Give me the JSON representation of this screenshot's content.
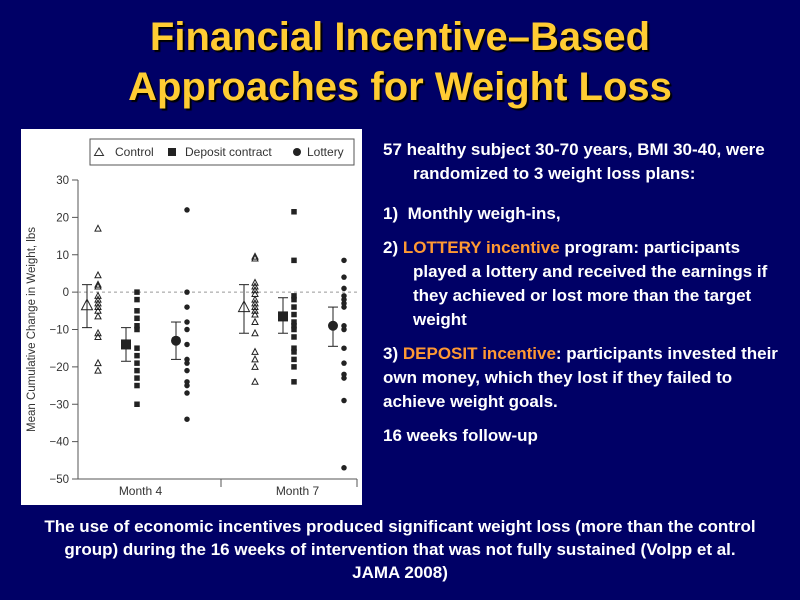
{
  "slide": {
    "title_line1": "Financial Incentive–Based",
    "title_line2": "Approaches for Weight Loss",
    "intro": "57 healthy subject 30-70 years, BMI 30-40, were randomized to 3 weight loss plans:",
    "item1_num": "1)",
    "item1_text": "Monthly weigh-ins,",
    "item2_num": "2)",
    "item2_highlight": "LOTTERY incentive",
    "item2_text": " program: participants played a lottery and received the earnings if they achieved or lost more than the target weight",
    "item3_num": "3)",
    "item3_highlight": "DEPOSIT incentive",
    "item3_text": ": participants invested their own money, which they lost if they failed to achieve weight goals.",
    "followup": "16 weeks follow-up",
    "conclusion": "The use of economic incentives produced significant weight loss (more than the control group) during the 16 weeks of intervention that was not fully sustained (Volpp et al. JAMA 2008)"
  },
  "colors": {
    "background": "#000066",
    "title": "#FFCC33",
    "highlight": "#FF9933",
    "text": "#FFFFFF"
  },
  "chart_data": {
    "type": "scatter",
    "ylabel": "Mean Cumulative Change in Weight, lbs",
    "ylim": [
      -50,
      30
    ],
    "yticks": [
      30,
      20,
      10,
      0,
      -10,
      -20,
      -30,
      -40,
      -50
    ],
    "ytick_labels": [
      "30",
      "20",
      "10",
      "0",
      "−10",
      "−20",
      "−30",
      "−40",
      "−50"
    ],
    "categories": [
      "Month 4",
      "Month 7"
    ],
    "legend": {
      "position": "top",
      "entries": [
        "Control",
        "Deposit contract",
        "Lottery"
      ]
    },
    "series": [
      {
        "name": "Control",
        "marker": "triangle-open",
        "points": [
          [
            17,
            4.5,
            2,
            1.5,
            -1,
            -2,
            -3,
            -4,
            -5,
            -6.5,
            -11,
            -12,
            -19,
            -21
          ],
          [
            9.5,
            9,
            2.5,
            1.5,
            0.5,
            -0.5,
            -2,
            -3,
            -4,
            -5,
            -6,
            -8,
            -11,
            -16,
            -18,
            -20,
            -24
          ]
        ],
        "mean": [
          -3.5,
          -4
        ],
        "err": [
          [
            -9.5,
            2
          ],
          [
            -11,
            2
          ]
        ]
      },
      {
        "name": "Deposit contract",
        "marker": "square-filled",
        "points": [
          [
            0,
            -2,
            -5,
            -7,
            -9,
            -10,
            -15,
            -17,
            -19,
            -21,
            -23,
            -25,
            -30
          ],
          [
            21.5,
            8.5,
            -1,
            -2,
            -4,
            -6,
            -8,
            -9,
            -10,
            -12,
            -15,
            -16,
            -18,
            -20,
            -24
          ]
        ],
        "mean": [
          -14,
          -6.5
        ],
        "err": [
          [
            -18.5,
            -9.5
          ],
          [
            -11,
            -1.5
          ]
        ]
      },
      {
        "name": "Lottery",
        "marker": "circle-filled",
        "points": [
          [
            22,
            0,
            -4,
            -8,
            -10,
            -14,
            -18,
            -19,
            -21,
            -24,
            -25,
            -27,
            -34
          ],
          [
            8.5,
            4,
            1,
            -1,
            -2,
            -3,
            -4,
            -9,
            -10,
            -15,
            -19,
            -22,
            -23,
            -29,
            -47
          ]
        ],
        "mean": [
          -13,
          -9
        ],
        "err": [
          [
            -18,
            -8
          ],
          [
            -14.5,
            -4
          ]
        ]
      }
    ]
  }
}
